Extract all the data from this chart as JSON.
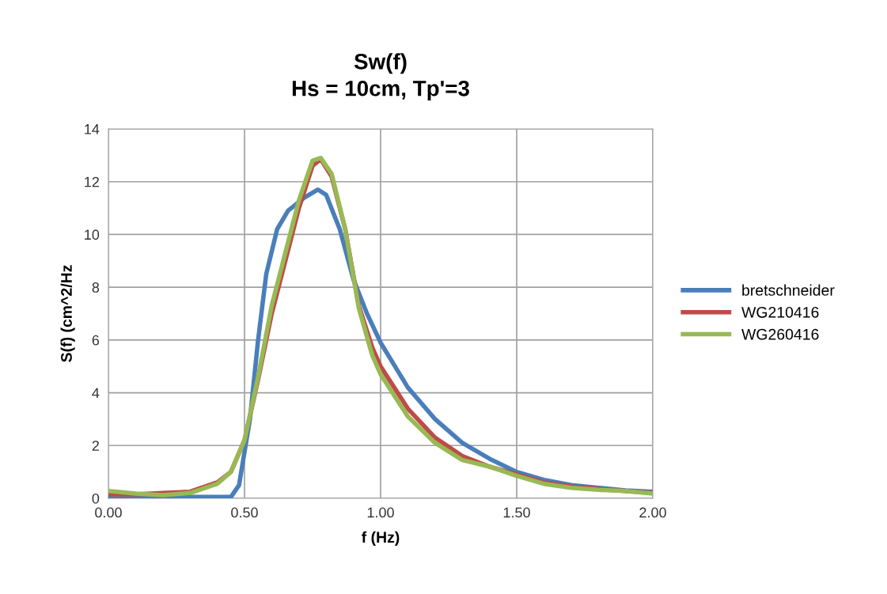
{
  "chart_data": {
    "type": "line",
    "title": "Sw(f)\nHs = 10cm, Tp'=3",
    "xlabel": "f (Hz)",
    "ylabel": "S(f) (cm^2/Hz",
    "xlim": [
      0,
      2
    ],
    "xticks": [
      {
        "value": 0,
        "label": "0.00"
      },
      {
        "value": 0.5,
        "label": "0.50"
      },
      {
        "value": 1,
        "label": "1.00"
      },
      {
        "value": 1.5,
        "label": "1.50"
      },
      {
        "value": 2,
        "label": "2.00"
      }
    ],
    "ylim": [
      0,
      14
    ],
    "yticks": [
      0,
      2,
      4,
      6,
      8,
      10,
      12,
      14
    ],
    "grid": true,
    "legend": "right",
    "marker": "none",
    "line_style": "solid",
    "series": [
      {
        "name": "bretschneider",
        "color": "#4a7ebb",
        "x": [
          0,
          0.3,
          0.45,
          0.48,
          0.52,
          0.55,
          0.58,
          0.62,
          0.66,
          0.72,
          0.77,
          0.8,
          0.85,
          0.9,
          0.95,
          1.0,
          1.1,
          1.2,
          1.3,
          1.4,
          1.5,
          1.6,
          1.7,
          1.8,
          1.9,
          2.0
        ],
        "values": [
          0.05,
          0.05,
          0.05,
          0.5,
          3,
          6,
          8.5,
          10.2,
          10.9,
          11.4,
          11.7,
          11.5,
          10.2,
          8.3,
          7,
          5.9,
          4.2,
          3,
          2.1,
          1.5,
          1.0,
          0.7,
          0.5,
          0.4,
          0.3,
          0.25
        ]
      },
      {
        "name": "WG210416",
        "color": "#be4b48",
        "x": [
          0,
          0.1,
          0.2,
          0.3,
          0.4,
          0.45,
          0.5,
          0.55,
          0.6,
          0.65,
          0.7,
          0.75,
          0.78,
          0.82,
          0.87,
          0.92,
          0.97,
          1.0,
          1.1,
          1.2,
          1.3,
          1.4,
          1.5,
          1.6,
          1.7,
          1.8,
          1.9,
          2.0
        ],
        "values": [
          0.15,
          0.15,
          0.2,
          0.25,
          0.6,
          1.0,
          2.2,
          4.5,
          7,
          9,
          11,
          12.6,
          12.85,
          12.2,
          10.2,
          7.3,
          5.7,
          5.0,
          3.4,
          2.3,
          1.6,
          1.2,
          0.9,
          0.6,
          0.45,
          0.35,
          0.28,
          0.2
        ]
      },
      {
        "name": "WG260416",
        "color": "#98b954",
        "x": [
          0,
          0.1,
          0.2,
          0.3,
          0.4,
          0.45,
          0.5,
          0.55,
          0.6,
          0.65,
          0.7,
          0.75,
          0.78,
          0.82,
          0.87,
          0.92,
          0.97,
          1.0,
          1.1,
          1.2,
          1.3,
          1.4,
          1.5,
          1.6,
          1.7,
          1.8,
          1.9,
          2.0
        ],
        "values": [
          0.28,
          0.18,
          0.12,
          0.2,
          0.55,
          1.0,
          2.2,
          4.6,
          7.3,
          9.3,
          11.3,
          12.8,
          12.9,
          12.3,
          10.2,
          7.2,
          5.4,
          4.7,
          3.1,
          2.1,
          1.45,
          1.2,
          0.85,
          0.55,
          0.4,
          0.32,
          0.28,
          0.18
        ]
      }
    ]
  }
}
